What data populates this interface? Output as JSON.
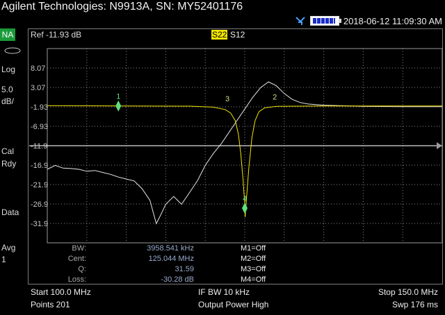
{
  "title": "Agilent Technologies: N9913A, SN: MY52401176",
  "datetime": "2018-06-12 11:09:30 AM",
  "mode": "NA",
  "left_panel": {
    "scale_type": "Log",
    "scale_value": "5.0",
    "scale_unit": "dB/",
    "cal_line1": "Cal",
    "cal_line2": "Rdy",
    "data_label": "Data",
    "avg_label": "Avg",
    "avg_value": "1"
  },
  "ref_label": "Ref -11.93 dB",
  "traces": {
    "active": "S22",
    "other": "S12"
  },
  "y_axis": {
    "ticks": [
      "8.07",
      "3.07",
      "-1.93",
      "-6.93",
      "-11.9",
      "-16.9",
      "-21.9",
      "-26.9",
      "-31.9"
    ]
  },
  "chart_data": {
    "type": "line",
    "x_unit": "MHz",
    "xlim": [
      100.0,
      150.0
    ],
    "ylim": [
      -36.93,
      13.07
    ],
    "reference_level": -11.93,
    "series": [
      {
        "color": "#e8e8e8",
        "points": [
          [
            100.0,
            -18.0
          ],
          [
            101.0,
            -17.0
          ],
          [
            102.0,
            -17.7
          ],
          [
            103.0,
            -17.8
          ],
          [
            104.0,
            -18.0
          ],
          [
            105.0,
            -18.5
          ],
          [
            106.0,
            -18.3
          ],
          [
            107.0,
            -18.8
          ],
          [
            108.0,
            -19.3
          ],
          [
            109.0,
            -20.0
          ],
          [
            110.0,
            -20.5
          ],
          [
            111.0,
            -21.0
          ],
          [
            112.0,
            -23.0
          ],
          [
            113.0,
            -26.0
          ],
          [
            113.4,
            -29.0
          ],
          [
            113.8,
            -32.0
          ],
          [
            114.3,
            -30.0
          ],
          [
            115.0,
            -27.0
          ],
          [
            116.0,
            -25.0
          ],
          [
            117.0,
            -27.0
          ],
          [
            118.0,
            -24.0
          ],
          [
            119.0,
            -21.0
          ],
          [
            120.0,
            -17.0
          ],
          [
            121.0,
            -14.0
          ],
          [
            122.0,
            -11.5
          ],
          [
            123.0,
            -8.5
          ],
          [
            124.0,
            -5.5
          ],
          [
            125.0,
            -2.5
          ],
          [
            126.0,
            0.5
          ],
          [
            127.0,
            3.0
          ],
          [
            128.0,
            4.5
          ],
          [
            129.0,
            3.5
          ],
          [
            130.0,
            1.5
          ],
          [
            131.0,
            0.0
          ],
          [
            132.0,
            -0.8
          ],
          [
            133.0,
            -1.2
          ],
          [
            135.0,
            -1.5
          ],
          [
            140.0,
            -1.8
          ],
          [
            145.0,
            -1.9
          ],
          [
            150.0,
            -1.9
          ]
        ]
      },
      {
        "color": "#f4e600",
        "points": [
          [
            100.0,
            -1.6
          ],
          [
            110.0,
            -1.7
          ],
          [
            118.0,
            -1.75
          ],
          [
            121.0,
            -2.0
          ],
          [
            122.5,
            -2.6
          ],
          [
            123.2,
            -3.5
          ],
          [
            123.8,
            -5.5
          ],
          [
            124.2,
            -9.0
          ],
          [
            124.5,
            -14.0
          ],
          [
            124.8,
            -21.0
          ],
          [
            125.0,
            -27.0
          ],
          [
            125.05,
            -30.3
          ],
          [
            125.2,
            -26.0
          ],
          [
            125.5,
            -18.0
          ],
          [
            125.9,
            -10.0
          ],
          [
            126.3,
            -5.5
          ],
          [
            126.8,
            -3.2
          ],
          [
            127.5,
            -2.2
          ],
          [
            129.0,
            -1.8
          ],
          [
            135.0,
            -1.7
          ],
          [
            150.0,
            -1.7
          ]
        ]
      }
    ],
    "markers": [
      {
        "label": "1",
        "x": 109.0,
        "y": -1.7
      },
      {
        "label": "2",
        "x": 128.8,
        "y": -1.8
      },
      {
        "label": "3",
        "x": 122.8,
        "y": -2.3
      },
      {
        "label": "4",
        "x": 125.0,
        "y": -28.0
      }
    ]
  },
  "stats": [
    {
      "key": "BW:",
      "value": "3958.541 kHz"
    },
    {
      "key": "Cent:",
      "value": "125.044 MHz"
    },
    {
      "key": "Q:",
      "value": "31.59"
    },
    {
      "key": "Loss:",
      "value": "-30.28 dB"
    }
  ],
  "marker_status": [
    "M1=Off",
    "M2=Off",
    "M3=Off",
    "M4=Off"
  ],
  "bottom": {
    "start": "Start 100.0 MHz",
    "ifbw": "IF BW 10 kHz",
    "stop": "Stop 150.0 MHz",
    "points": "Points 201",
    "power": "Output Power High",
    "sweep": "Swp 176 ms"
  }
}
